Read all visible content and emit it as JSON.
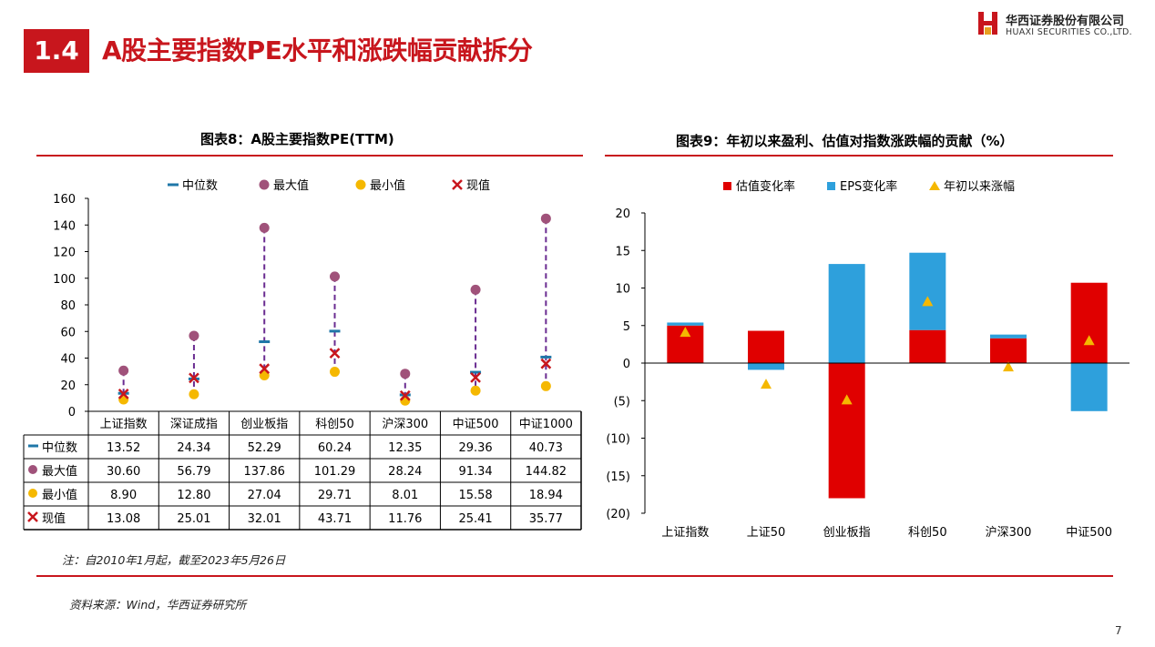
{
  "header": {
    "section_number": "1.4",
    "title": "A股主要指数PE水平和涨跌幅贡献拆分",
    "brand_cn": "华西证券股份有限公司",
    "brand_en": "HUAXI SECURITIES CO.,LTD.",
    "brand_color": "#c8161d"
  },
  "chart_data": [
    {
      "type": "scatter",
      "title": "图表8：A股主要指数PE(TTM)",
      "categories": [
        "上证指数",
        "深证成指",
        "创业板指",
        "科创50",
        "沪深300",
        "中证500",
        "中证1000"
      ],
      "ylim": [
        0,
        160
      ],
      "yticks": [
        0,
        20,
        40,
        60,
        80,
        100,
        120,
        140,
        160
      ],
      "legend_position": "top",
      "series": [
        {
          "name": "中位数",
          "color": "#1f77a8",
          "marker": "dash",
          "values": [
            13.52,
            24.34,
            52.29,
            60.24,
            12.35,
            29.36,
            40.73
          ]
        },
        {
          "name": "最大值",
          "color": "#a0527a",
          "marker": "circle",
          "values": [
            30.6,
            56.79,
            137.86,
            101.29,
            28.24,
            91.34,
            144.82
          ]
        },
        {
          "name": "最小值",
          "color": "#f5b800",
          "marker": "circle",
          "values": [
            8.9,
            12.8,
            27.04,
            29.71,
            8.01,
            15.58,
            18.94
          ]
        },
        {
          "name": "现值",
          "color": "#c8161d",
          "marker": "x",
          "values": [
            13.08,
            25.01,
            32.01,
            43.71,
            11.76,
            25.41,
            35.77
          ]
        }
      ],
      "range_line_color": "#6a2c91",
      "table_rows": [
        [
          "13.52",
          "24.34",
          "52.29",
          "60.24",
          "12.35",
          "29.36",
          "40.73"
        ],
        [
          "30.60",
          "56.79",
          "137.86",
          "101.29",
          "28.24",
          "91.34",
          "144.82"
        ],
        [
          "8.90",
          "12.80",
          "27.04",
          "29.71",
          "8.01",
          "15.58",
          "18.94"
        ],
        [
          "13.08",
          "25.01",
          "32.01",
          "43.71",
          "11.76",
          "25.41",
          "35.77"
        ]
      ]
    },
    {
      "type": "bar",
      "title": "图表9：年初以来盈利、估值对指数涨跌幅的贡献（%）",
      "categories": [
        "上证指数",
        "上证50",
        "创业板指",
        "科创50",
        "沪深300",
        "中证500"
      ],
      "ylim": [
        -20,
        20
      ],
      "yticks": [
        20,
        15,
        10,
        5,
        0,
        -5,
        -10,
        -15,
        -20
      ],
      "ytick_labels": [
        "20",
        "15",
        "10",
        "5",
        "0",
        "(5)",
        "(10)",
        "(15)",
        "(20)"
      ],
      "legend_position": "top",
      "series": [
        {
          "name": "估值变化率",
          "color": "#e00000",
          "type": "bar",
          "values": [
            5.0,
            4.3,
            -18.0,
            4.4,
            3.3,
            10.7
          ]
        },
        {
          "name": "EPS变化率",
          "color": "#2ea0dc",
          "type": "bar",
          "values": [
            0.4,
            -0.9,
            13.2,
            10.3,
            0.5,
            -6.4
          ]
        },
        {
          "name": "年初以来涨幅",
          "color": "#f5b800",
          "type": "marker",
          "values": [
            4.1,
            -2.8,
            -4.9,
            8.2,
            -0.5,
            3.0
          ]
        }
      ]
    }
  ],
  "footer": {
    "note": "注：自2010年1月起，截至2023年5月26日",
    "source": "资料来源：Wind，华西证券研究所",
    "page_number": "7"
  }
}
